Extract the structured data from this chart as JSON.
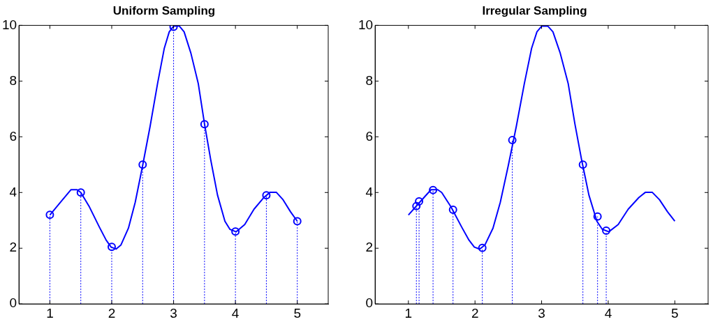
{
  "chart_data": [
    {
      "type": "line",
      "title": "Uniform Sampling",
      "xlim": [
        0.5,
        5.5
      ],
      "ylim": [
        0,
        10
      ],
      "xticks": [
        1,
        2,
        3,
        4,
        5
      ],
      "yticks": [
        0,
        2,
        4,
        6,
        8,
        10
      ],
      "grid": false,
      "legend": false,
      "series": [
        {
          "type": "line",
          "color": "#0000ff",
          "marker": "none",
          "line_style": "solid",
          "x": [
            1,
            1.17,
            1.34,
            1.44,
            1.5,
            1.64,
            1.8,
            1.91,
            1.99,
            2.07,
            2.15,
            2.27,
            2.38,
            2.5,
            2.62,
            2.74,
            2.85,
            2.93,
            3.0,
            3.09,
            3.17,
            3.28,
            3.4,
            3.5,
            3.6,
            3.71,
            3.83,
            3.91,
            4.01,
            4.15,
            4.3,
            4.46,
            4.56,
            4.66,
            4.77,
            4.89,
            5
          ],
          "values": [
            3.19,
            3.65,
            4.1,
            4.1,
            4.0,
            3.48,
            2.76,
            2.29,
            2.04,
            1.97,
            2.12,
            2.72,
            3.65,
            4.97,
            6.37,
            7.9,
            9.18,
            9.77,
            9.97,
            9.98,
            9.77,
            9.0,
            7.9,
            6.46,
            5.18,
            3.91,
            2.97,
            2.68,
            2.59,
            2.85,
            3.4,
            3.82,
            4.01,
            4.01,
            3.74,
            3.31,
            2.97
          ]
        },
        {
          "type": "lollipop",
          "color": "#0000ff",
          "marker": "circle",
          "line_style": "dotted",
          "x": [
            1,
            1.5,
            2,
            2.5,
            3,
            3.5,
            4,
            4.5,
            5
          ],
          "values": [
            3.2,
            4.0,
            2.05,
            5.0,
            9.95,
            6.45,
            2.6,
            3.9,
            2.97
          ]
        }
      ]
    },
    {
      "type": "line",
      "title": "Irregular Sampling",
      "xlim": [
        0.5,
        5.5
      ],
      "ylim": [
        0,
        10
      ],
      "xticks": [
        1,
        2,
        3,
        4,
        5
      ],
      "yticks": [
        0,
        2,
        4,
        6,
        8,
        10
      ],
      "grid": false,
      "legend": false,
      "series": [
        {
          "type": "line",
          "color": "#0000ff",
          "marker": "none",
          "line_style": "solid",
          "x": [
            1,
            1.17,
            1.34,
            1.44,
            1.5,
            1.64,
            1.8,
            1.91,
            1.99,
            2.07,
            2.15,
            2.27,
            2.38,
            2.5,
            2.62,
            2.74,
            2.85,
            2.93,
            3.0,
            3.09,
            3.17,
            3.28,
            3.4,
            3.5,
            3.6,
            3.71,
            3.83,
            3.91,
            4.01,
            4.15,
            4.3,
            4.46,
            4.56,
            4.66,
            4.77,
            4.89,
            5
          ],
          "values": [
            3.19,
            3.65,
            4.1,
            4.1,
            4.0,
            3.48,
            2.76,
            2.29,
            2.04,
            1.97,
            2.12,
            2.72,
            3.65,
            4.97,
            6.37,
            7.9,
            9.18,
            9.77,
            9.97,
            9.98,
            9.77,
            9.0,
            7.9,
            6.46,
            5.18,
            3.91,
            2.97,
            2.68,
            2.59,
            2.85,
            3.4,
            3.82,
            4.01,
            4.01,
            3.74,
            3.31,
            2.97
          ]
        },
        {
          "type": "lollipop",
          "color": "#0000ff",
          "marker": "circle",
          "line_style": "dotted",
          "x": [
            1.12,
            1.16,
            1.37,
            1.67,
            2.11,
            2.56,
            3.62,
            3.84,
            3.97
          ],
          "values": [
            3.51,
            3.68,
            4.09,
            3.38,
            2.01,
            5.88,
            5.0,
            3.14,
            2.63
          ]
        }
      ]
    }
  ]
}
